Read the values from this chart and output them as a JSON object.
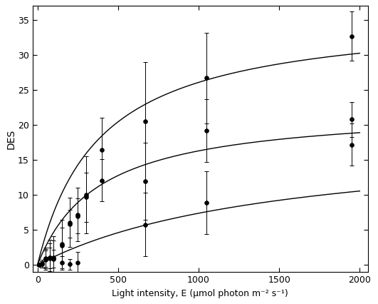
{
  "title": "",
  "xlabel": "Light intensity, E (μmol photon m⁻² s⁻¹)",
  "ylabel": "DES",
  "xlim": [
    -30,
    2050
  ],
  "ylim": [
    -1,
    37
  ],
  "xticks": [
    0,
    500,
    1000,
    1500,
    2000
  ],
  "yticks": [
    0,
    5,
    10,
    15,
    20,
    25,
    30,
    35
  ],
  "background_color": "#ffffff",
  "curve_color": "#000000",
  "epipelic_x": [
    10,
    30,
    50,
    75,
    100,
    150,
    200,
    250,
    670,
    1050,
    1950
  ],
  "epipelic_y": [
    0.0,
    0.1,
    0.9,
    1.0,
    0.9,
    0.3,
    0.1,
    0.4,
    5.8,
    8.9,
    17.2
  ],
  "epipelic_xerr": [
    0,
    0,
    0,
    0,
    0,
    0,
    0,
    0,
    0,
    0,
    0
  ],
  "epipelic_yerr": [
    0.15,
    0.5,
    1.2,
    1.5,
    1.3,
    1.0,
    0.8,
    1.5,
    4.5,
    4.5,
    3.0
  ],
  "epipsammic_x": [
    10,
    30,
    50,
    75,
    100,
    150,
    200,
    250,
    300,
    400,
    670,
    1050,
    1950
  ],
  "epipsammic_y": [
    0.0,
    0.1,
    0.8,
    1.1,
    1.0,
    2.8,
    5.9,
    7.0,
    9.7,
    12.1,
    12.0,
    19.2,
    20.8
  ],
  "epipsammic_yerr": [
    0.2,
    0.5,
    1.5,
    2.0,
    2.5,
    2.5,
    2.0,
    2.5,
    3.5,
    3.0,
    5.5,
    4.5,
    2.5
  ],
  "tycho_x": [
    10,
    30,
    50,
    75,
    100,
    150,
    200,
    250,
    300,
    400,
    670,
    1050,
    1950
  ],
  "tycho_y": [
    0.0,
    0.2,
    1.0,
    1.1,
    1.1,
    3.0,
    6.1,
    7.2,
    10.0,
    16.5,
    20.5,
    26.7,
    32.7
  ],
  "tycho_yerr": [
    0.2,
    0.6,
    1.5,
    2.5,
    3.0,
    3.5,
    3.5,
    3.8,
    5.5,
    4.5,
    8.5,
    6.5,
    3.5
  ],
  "epipelic_Vmax": 18.5,
  "epipelic_Km": 1500,
  "epipsammic_Vmax": 22.5,
  "epipsammic_Km": 380,
  "tycho_Vmax": 36.0,
  "tycho_Km": 380,
  "markersize": 4,
  "linewidth": 1.0,
  "capsize": 2,
  "elinewidth": 0.7,
  "markeredgewidth": 0.7
}
